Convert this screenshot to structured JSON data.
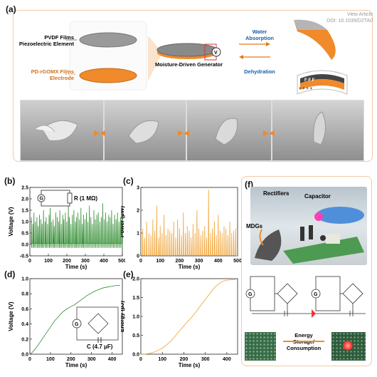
{
  "watermark": "View Article Online\nDOI: 10.1039/D2TA0",
  "watermark_line1": "View Article",
  "watermark_line2": "DOI: 10.1039/D2TA0",
  "panel_a": {
    "label": "(a)",
    "pvdf_label_1": "PVDF Films",
    "pvdf_label_2": "Piezoelectric Element",
    "pd_label_1": "PD-rGOMX Films",
    "pd_label_2": "Electrode",
    "generator_label": "Moisture-Driven Generator",
    "voltmeter": "V",
    "water_label_1": "Water",
    "water_label_2": "Absorption",
    "dehydration_label": "Dehydration",
    "charges_top": "- - - - -",
    "charges_mid": "F  F  F",
    "charges_bottom": "+  +  +  +"
  },
  "colors": {
    "green": "#2e8b2e",
    "orange": "#f0a030",
    "panel_border": "#f1cba7",
    "film_orange": "#f08a2a",
    "film_gray": "#9a9a9a"
  },
  "panel_f": {
    "label": "(f)",
    "rectifiers": "Rectifiers",
    "capacitor": "Capacitor",
    "mdgs": "MDGs",
    "g1": "G",
    "g2": "G",
    "energy_1": "Energy",
    "energy_2": "Storage/",
    "energy_3": "Consumption"
  },
  "chart_data": [
    {
      "id": "b",
      "panel_label": "(b)",
      "type": "line",
      "xlabel": "Time (s)",
      "ylabel": "Voltage (V)",
      "xlim": [
        0,
        500
      ],
      "ylim": [
        -0.5,
        2.5
      ],
      "xticks": [
        0,
        100,
        200,
        300,
        400,
        500
      ],
      "yticks": [
        -0.5,
        0.0,
        0.5,
        1.0,
        1.5,
        2.0,
        2.5
      ],
      "xtick_labels": [
        "0",
        "100",
        "200",
        "300",
        "400",
        "500"
      ],
      "ytick_labels": [
        "-0.5",
        "0.0",
        "0.5",
        "1.0",
        "1.5",
        "2.0",
        "2.5"
      ],
      "color": "#2e8b2e",
      "inset_resistor": "R (1 MΩ)",
      "inset_g": "G",
      "baseline": 0.05,
      "spike_x": [
        8,
        16,
        22,
        30,
        38,
        45,
        52,
        60,
        66,
        74,
        82,
        88,
        96,
        104,
        110,
        118,
        126,
        132,
        140,
        148,
        156,
        162,
        170,
        178,
        184,
        192,
        200,
        208,
        214,
        222,
        230,
        238,
        246,
        252,
        260,
        268,
        276,
        284,
        290,
        298,
        306,
        314,
        322,
        330,
        338,
        346,
        354,
        362,
        370,
        378,
        386,
        394,
        402,
        410,
        418,
        426,
        434,
        442,
        450,
        458,
        466,
        474,
        482,
        490,
        498
      ],
      "spike_y": [
        1.2,
        0.9,
        1.4,
        1.0,
        1.2,
        0.8,
        1.3,
        1.1,
        0.9,
        1.5,
        1.0,
        1.2,
        0.9,
        1.3,
        1.6,
        1.0,
        1.1,
        0.8,
        1.4,
        1.2,
        1.0,
        1.5,
        0.9,
        1.3,
        1.1,
        1.4,
        1.0,
        1.7,
        1.2,
        0.9,
        1.3,
        1.5,
        1.0,
        1.2,
        1.4,
        1.1,
        1.6,
        0.9,
        1.3,
        1.1,
        1.4,
        1.0,
        1.7,
        1.2,
        0.9,
        1.5,
        1.1,
        1.3,
        1.4,
        1.0,
        1.2,
        1.8,
        1.1,
        1.4,
        1.0,
        1.3,
        1.2,
        1.5,
        0.9,
        1.3,
        1.1,
        1.4,
        1.0,
        1.2,
        1.3
      ]
    },
    {
      "id": "c",
      "panel_label": "(c)",
      "type": "line",
      "xlabel": "Time (s)",
      "ylabel": "Power (μW)",
      "xlim": [
        0,
        500
      ],
      "ylim": [
        0,
        3
      ],
      "xticks": [
        0,
        100,
        200,
        300,
        400,
        500
      ],
      "yticks": [
        0,
        1,
        2,
        3
      ],
      "xtick_labels": [
        "0",
        "100",
        "200",
        "300",
        "400",
        "500"
      ],
      "ytick_labels": [
        "0",
        "1",
        "2",
        "3"
      ],
      "color": "#f0a030",
      "spike_x": [
        10,
        20,
        30,
        42,
        52,
        62,
        72,
        82,
        92,
        100,
        110,
        120,
        130,
        140,
        150,
        160,
        170,
        180,
        190,
        200,
        210,
        220,
        230,
        240,
        250,
        260,
        270,
        280,
        290,
        300,
        310,
        320,
        330,
        340,
        350,
        360,
        370,
        380,
        390,
        400,
        410,
        420,
        430,
        440,
        450,
        460,
        470,
        480,
        490
      ],
      "spike_y": [
        1.2,
        0.8,
        1.5,
        1.0,
        0.9,
        1.6,
        1.1,
        2.2,
        0.8,
        1.3,
        1.0,
        1.8,
        0.9,
        1.2,
        1.1,
        1.0,
        1.5,
        0.8,
        1.6,
        1.2,
        0.9,
        1.9,
        1.0,
        1.3,
        1.1,
        0.8,
        1.4,
        1.0,
        2.0,
        1.2,
        0.9,
        1.1,
        1.3,
        0.8,
        2.9,
        1.0,
        1.2,
        1.5,
        0.9,
        1.8,
        1.1,
        1.0,
        1.3,
        1.2,
        0.9,
        1.5,
        1.0,
        1.1,
        1.2
      ]
    },
    {
      "id": "d",
      "panel_label": "(d)",
      "type": "line",
      "xlabel": "Time (s)",
      "ylabel": "Voltage (V)",
      "xlim": [
        0,
        450
      ],
      "ylim": [
        0,
        1.0
      ],
      "xticks": [
        0,
        100,
        200,
        300,
        400
      ],
      "yticks": [
        0.0,
        0.2,
        0.4,
        0.6,
        0.8,
        1.0
      ],
      "xtick_labels": [
        "0",
        "100",
        "200",
        "300",
        "400"
      ],
      "ytick_labels": [
        "0.0",
        "0.2",
        "0.4",
        "0.6",
        "0.8",
        "1.0"
      ],
      "color": "#2e8b2e",
      "inset_g": "G",
      "inset_capacitor": "C (4.7 μF)",
      "x": [
        0,
        10,
        20,
        40,
        60,
        80,
        100,
        120,
        140,
        160,
        180,
        200,
        220,
        240,
        260,
        280,
        300,
        320,
        340,
        360,
        380,
        400,
        420,
        440
      ],
      "y": [
        0.0,
        0.02,
        0.05,
        0.12,
        0.2,
        0.28,
        0.36,
        0.44,
        0.5,
        0.56,
        0.6,
        0.63,
        0.66,
        0.7,
        0.74,
        0.78,
        0.81,
        0.84,
        0.86,
        0.88,
        0.89,
        0.9,
        0.91,
        0.91
      ]
    },
    {
      "id": "e",
      "panel_label": "(e)",
      "type": "line",
      "xlabel": "Time (s)",
      "ylabel": "Energy (μJ)",
      "xlim": [
        0,
        450
      ],
      "ylim": [
        0,
        2.0
      ],
      "xticks": [
        0,
        100,
        200,
        300,
        400
      ],
      "yticks": [
        0.0,
        0.5,
        1.0,
        1.5,
        2.0
      ],
      "xtick_labels": [
        "0",
        "100",
        "200",
        "300",
        "400"
      ],
      "ytick_labels": [
        "0.0",
        "0.5",
        "1.0",
        "1.5",
        "2.0"
      ],
      "color": "#f0a030",
      "x": [
        0,
        20,
        40,
        60,
        80,
        100,
        120,
        140,
        160,
        180,
        200,
        220,
        240,
        260,
        280,
        300,
        320,
        340,
        360,
        380,
        400,
        420,
        440
      ],
      "y": [
        0.0,
        0.0,
        0.02,
        0.05,
        0.1,
        0.16,
        0.25,
        0.35,
        0.48,
        0.62,
        0.75,
        0.88,
        1.0,
        1.15,
        1.3,
        1.45,
        1.6,
        1.75,
        1.85,
        1.93,
        1.96,
        1.97,
        1.97
      ]
    }
  ]
}
